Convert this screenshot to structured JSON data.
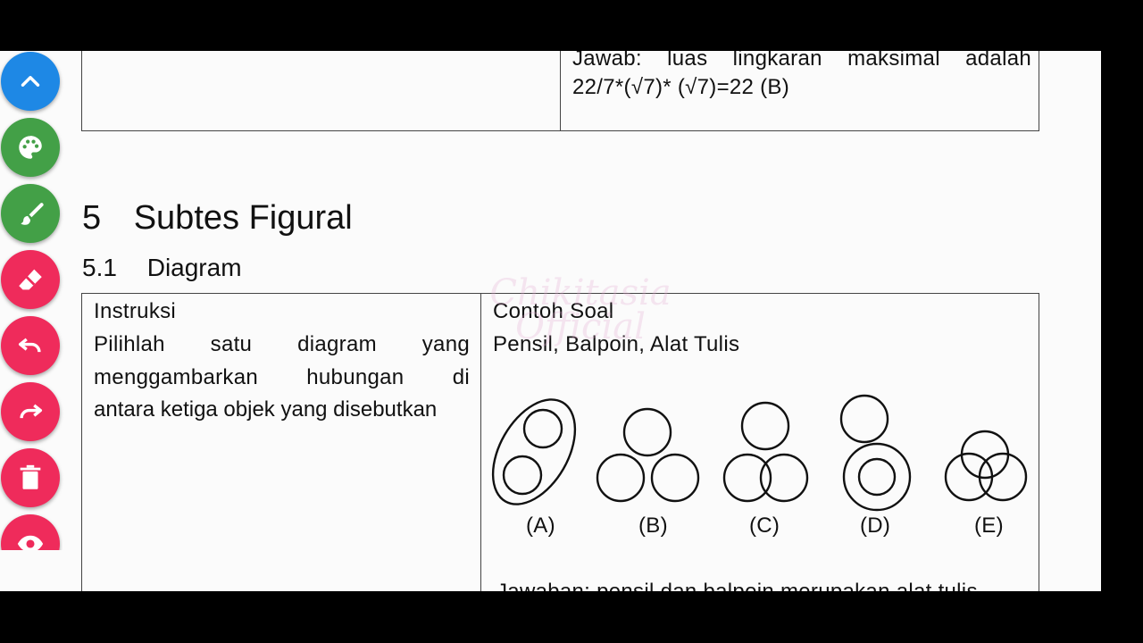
{
  "table_top": {
    "answer_line1_words": [
      "Jawab:",
      "luas",
      "lingkaran",
      "maksimal",
      "adalah"
    ],
    "answer_line2": "22/7*(√7)* (√7)=22 (B)"
  },
  "section": {
    "number": "5",
    "title": "Subtes Figural"
  },
  "subsection": {
    "number": "5.1",
    "title": "Diagram"
  },
  "table": {
    "left_header": "Instruksi",
    "left_lines": [
      [
        "Pilihlah",
        "satu",
        "diagram",
        "yang"
      ],
      [
        "menggambarkan",
        "hubungan",
        "di"
      ],
      [
        "antara ketiga objek yang disebutkan"
      ]
    ],
    "right_header": "Contoh Soal",
    "right_question": "Pensil, Balpoin, Alat Tulis",
    "options": [
      "(A)",
      "(B)",
      "(C)",
      "(D)",
      "(E)"
    ],
    "answer_partial": "Jawaban: pensil dan balpoin merupakan alat tulis"
  },
  "watermark": {
    "line1": "Chikitasia",
    "line2": "Official"
  },
  "tools": [
    {
      "name": "scroll-up-icon",
      "color": "#1e88e5"
    },
    {
      "name": "palette-icon",
      "color": "#43a047"
    },
    {
      "name": "brush-icon",
      "color": "#43a047"
    },
    {
      "name": "eraser-icon",
      "color": "#ef2b5b"
    },
    {
      "name": "undo-icon",
      "color": "#ef2b5b"
    },
    {
      "name": "redo-icon",
      "color": "#ef2b5b"
    },
    {
      "name": "trash-icon",
      "color": "#ef2b5b"
    },
    {
      "name": "eye-icon",
      "color": "#ef2b5b"
    }
  ]
}
